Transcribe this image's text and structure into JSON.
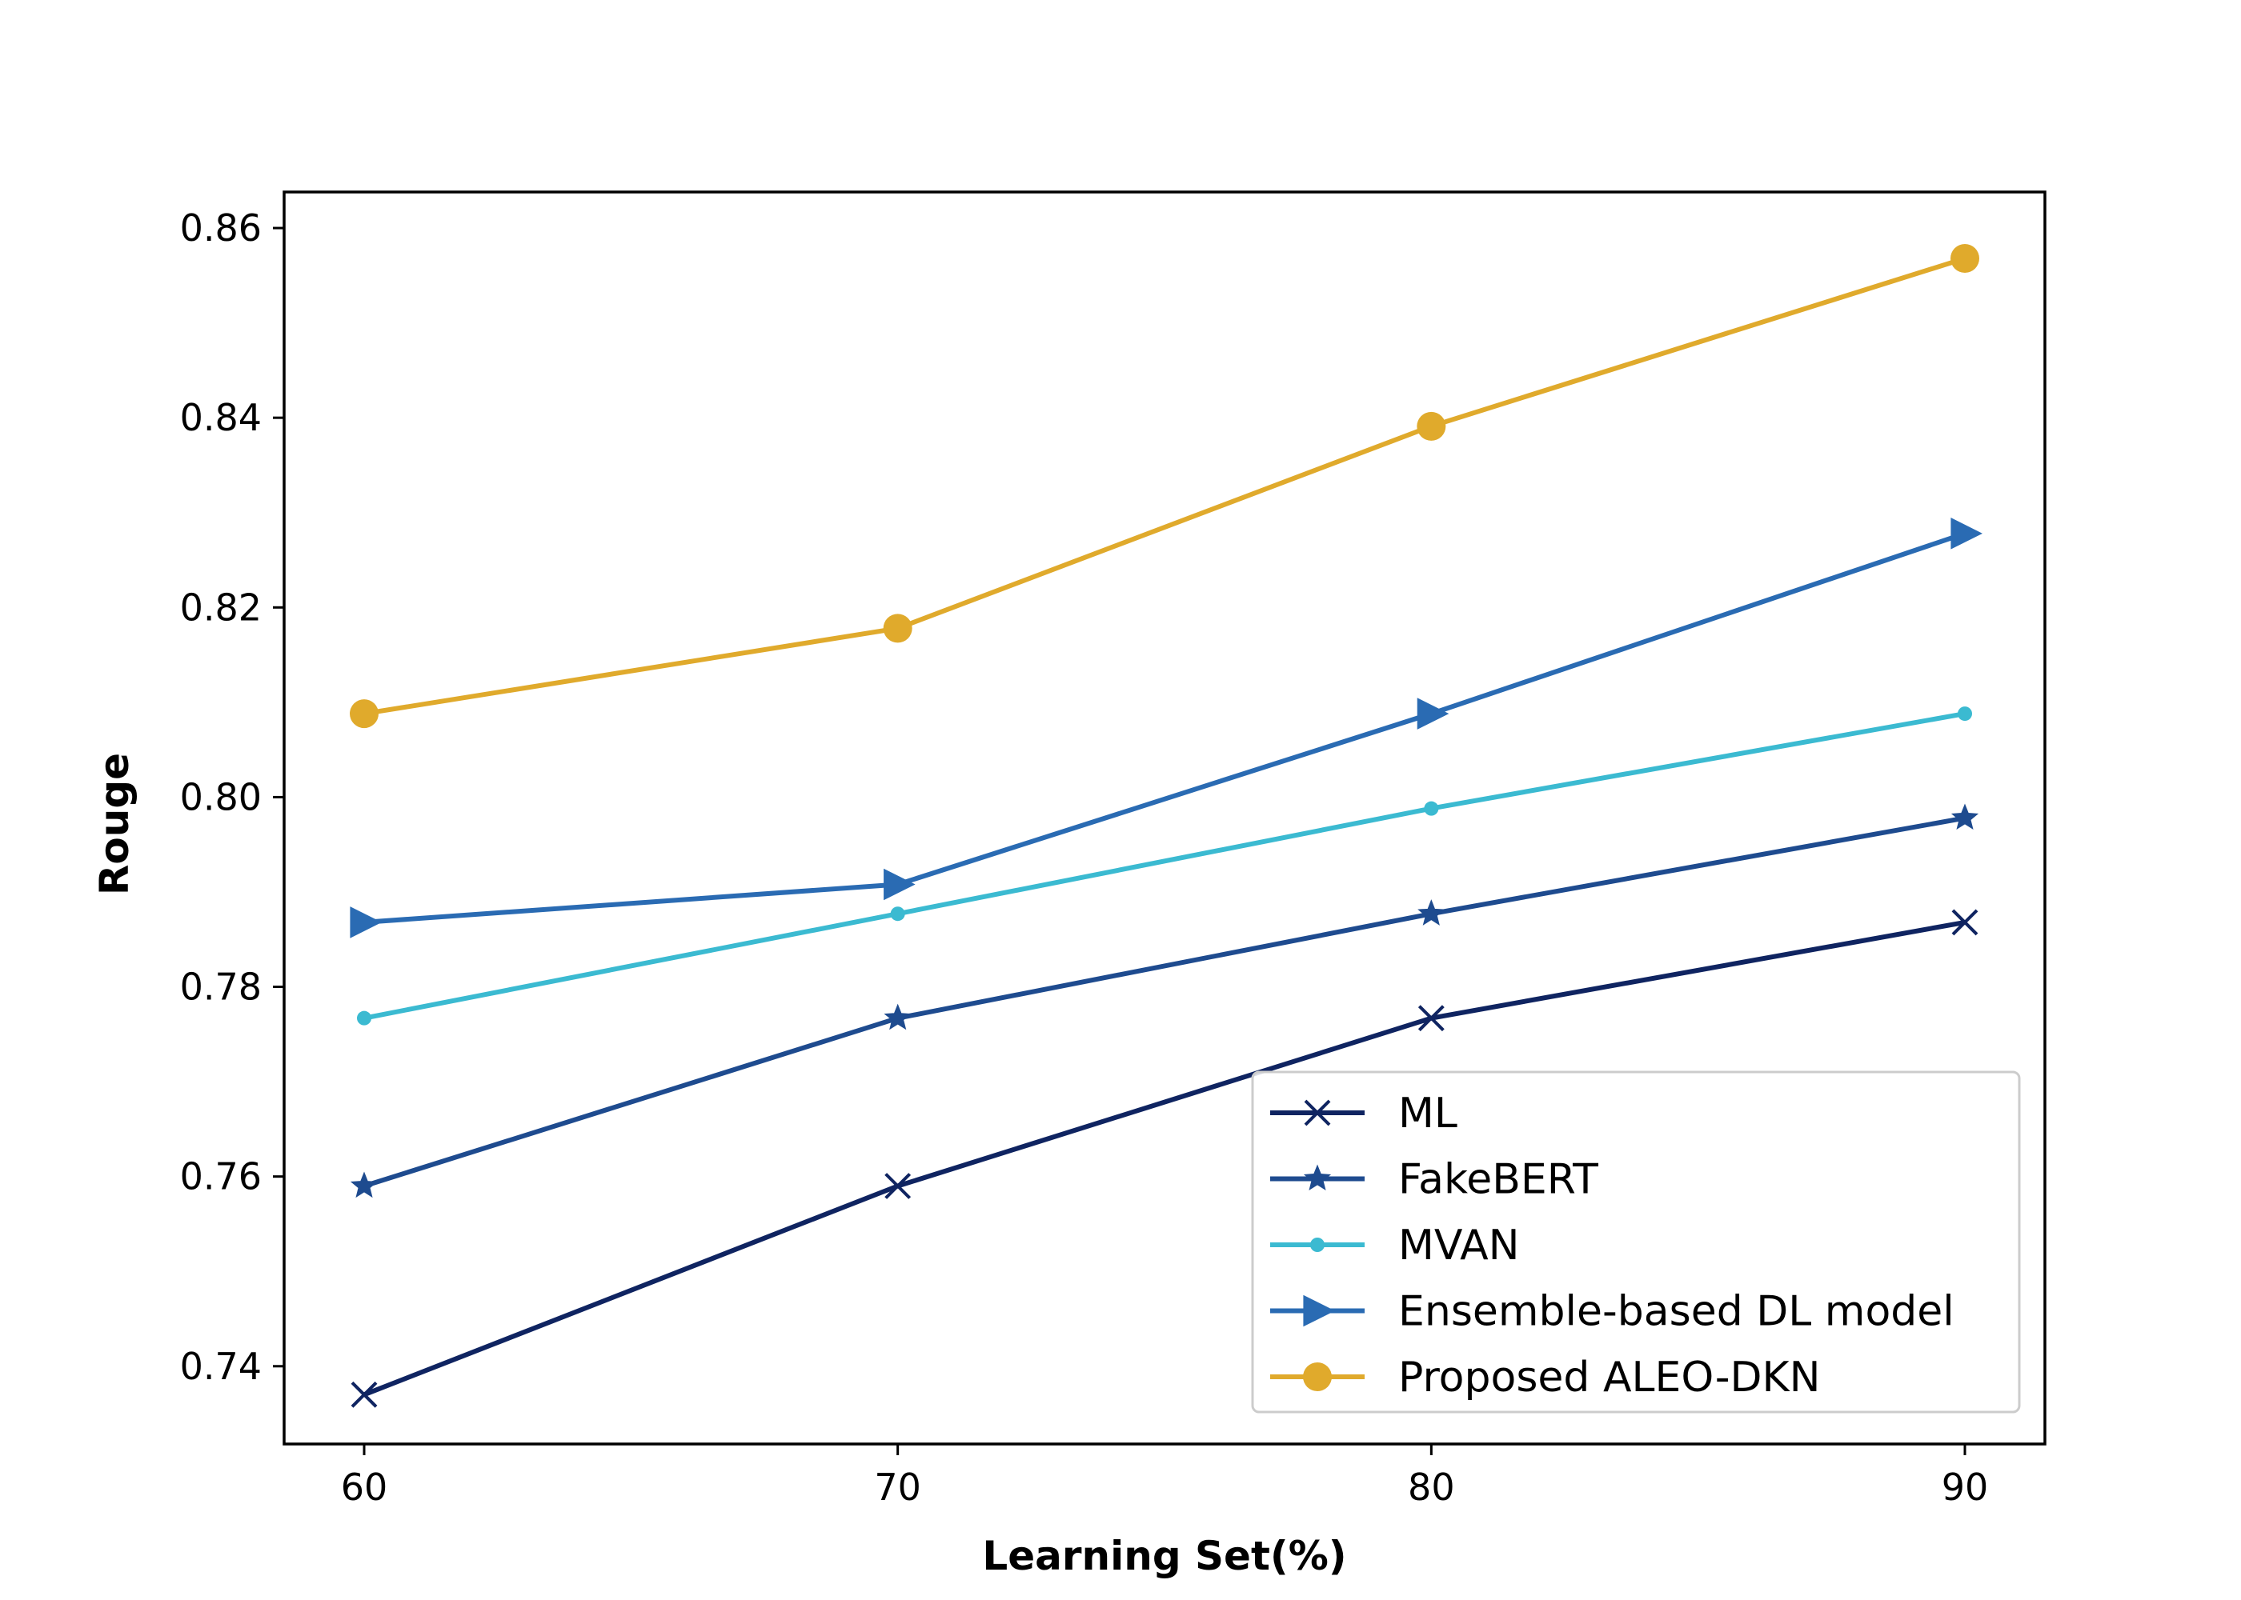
{
  "chart_data": {
    "type": "line",
    "title": "",
    "xlabel": "Learning Set(%)",
    "ylabel": "Rouge",
    "x": [
      60,
      70,
      80,
      90
    ],
    "xticks": [
      "60",
      "70",
      "80",
      "90"
    ],
    "yticks": [
      "0.74",
      "0.76",
      "0.78",
      "0.80",
      "0.82",
      "0.84",
      "0.86"
    ],
    "xlim": [
      58.5,
      91.5
    ],
    "ylim": [
      0.7318,
      0.8638
    ],
    "grid": false,
    "legend_position": "lower-right",
    "series": [
      {
        "name": "ML",
        "values": [
          0.737,
          0.759,
          0.7767,
          0.7868
        ],
        "color": "#0f2461",
        "marker": "x"
      },
      {
        "name": "FakeBERT",
        "values": [
          0.759,
          0.7767,
          0.7877,
          0.7978
        ],
        "color": "#1e4b8f",
        "marker": "star"
      },
      {
        "name": "MVAN",
        "values": [
          0.7767,
          0.7877,
          0.7988,
          0.8088
        ],
        "color": "#3bbad1",
        "marker": "dot"
      },
      {
        "name": "Ensemble-based DL model",
        "values": [
          0.7868,
          0.7908,
          0.8088,
          0.8278
        ],
        "color": "#2a6bb3",
        "marker": "triangle-right"
      },
      {
        "name": "Proposed ALEO-DKN",
        "values": [
          0.8088,
          0.8178,
          0.8391,
          0.8568
        ],
        "color": "#e0aa2c",
        "marker": "circle"
      }
    ]
  }
}
